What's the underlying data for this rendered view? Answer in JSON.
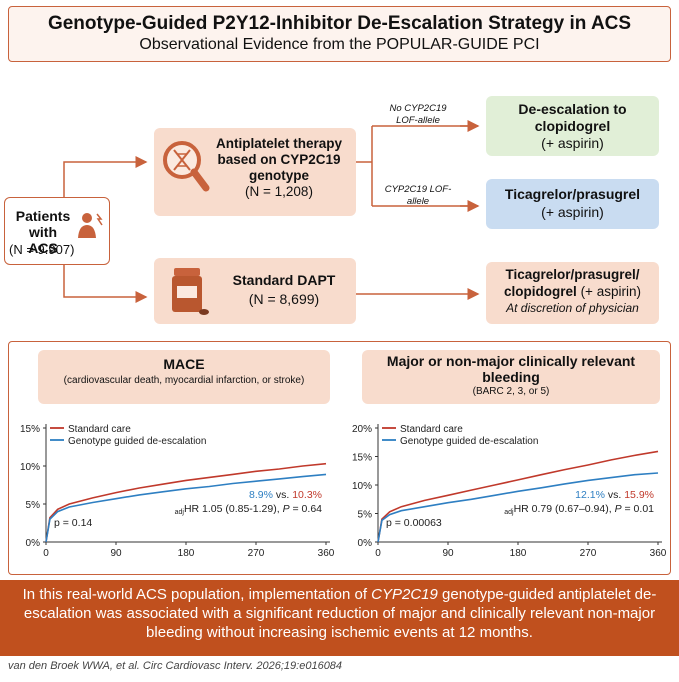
{
  "header": {
    "title": "Genotype-Guided P2Y12-Inhibitor De-Escalation Strategy in ACS",
    "subtitle": "Observational Evidence from the POPULAR-GUIDE PCI"
  },
  "patients": {
    "label": "Patients with ACS",
    "n": "(N = 9.907)"
  },
  "antiplatelet": {
    "label": "Antiplatelet therapy based on CYP2C19 genotype",
    "n": "(N = 1,208)"
  },
  "dapt": {
    "label": "Standard DAPT",
    "n": "(N = 8,699)"
  },
  "branches": {
    "no_lof": "No CYP2C19 LOF-allele",
    "lof": "CYP2C19 LOF-allele"
  },
  "outcomes": {
    "deescalation": {
      "label": "De-escalation to clopidogrel",
      "sub": "(+ aspirin)"
    },
    "ticagrelor": {
      "label": "Ticagrelor/prasugrel",
      "sub": "(+ aspirin)"
    },
    "standard": {
      "label": "Ticagrelor/prasugrel/ clopidogrel",
      "sub": "(+ aspirin)",
      "note": "At discretion of physician"
    }
  },
  "colors": {
    "accent": "#c8623c",
    "standard": "#c0392b",
    "genotype": "#2e7fc2"
  },
  "chart_data": [
    {
      "type": "line",
      "title": "MACE",
      "subtitle": "(cardiovascular death, myocardial infarction, or stroke)",
      "ylim": [
        0,
        15
      ],
      "yticks": [
        "0%",
        "5%",
        "10%",
        "15%"
      ],
      "xticks": [
        "0",
        "90",
        "180",
        "270",
        "360"
      ],
      "x": [
        0,
        5,
        15,
        30,
        60,
        90,
        120,
        150,
        180,
        210,
        240,
        270,
        300,
        330,
        360
      ],
      "series": [
        {
          "name": "Standard care",
          "values": [
            0,
            3.2,
            4.3,
            5.0,
            5.8,
            6.5,
            7.1,
            7.6,
            8.1,
            8.5,
            8.9,
            9.3,
            9.6,
            10.0,
            10.3
          ]
        },
        {
          "name": "Genotype guided de-escalation",
          "values": [
            0,
            3.0,
            4.0,
            4.6,
            5.2,
            5.7,
            6.2,
            6.6,
            7.0,
            7.3,
            7.7,
            8.0,
            8.3,
            8.6,
            8.9
          ]
        }
      ],
      "stat_blue": "8.9%",
      "stat_vs": " vs. ",
      "stat_red": "10.3%",
      "hr_sub": "adj",
      "hr_text": "HR 1.05 (0.85-1.29), ",
      "p_label": "P",
      "p_value": " = 0.64",
      "logrank": "p = 0.14"
    },
    {
      "type": "line",
      "title": "Major or non-major clinically relevant bleeding",
      "subtitle": "(BARC 2, 3, or 5)",
      "ylim": [
        0,
        20
      ],
      "yticks": [
        "0%",
        "5%",
        "10%",
        "15%",
        "20%"
      ],
      "xticks": [
        "0",
        "90",
        "180",
        "270",
        "360"
      ],
      "x": [
        0,
        5,
        15,
        30,
        60,
        90,
        120,
        150,
        180,
        210,
        240,
        270,
        300,
        330,
        360
      ],
      "series": [
        {
          "name": "Standard care",
          "values": [
            0,
            4.0,
            5.3,
            6.2,
            7.3,
            8.2,
            9.1,
            10.0,
            10.9,
            11.8,
            12.7,
            13.5,
            14.4,
            15.2,
            15.9
          ]
        },
        {
          "name": "Genotype guided de-escalation",
          "values": [
            0,
            3.8,
            4.8,
            5.5,
            6.2,
            6.9,
            7.5,
            8.2,
            8.9,
            9.5,
            10.2,
            10.8,
            11.3,
            11.8,
            12.1
          ]
        }
      ],
      "stat_blue": "12.1%",
      "stat_vs": " vs. ",
      "stat_red": "15.9%",
      "hr_sub": "adj",
      "hr_text": "HR 0.79 (0.67–0.94), ",
      "p_label": "P",
      "p_value": " = 0.01",
      "logrank": "p = 0.00063"
    }
  ],
  "conclusion": {
    "pre": "In this real-world ACS population, implementation of ",
    "gene": "CYP2C19",
    "post": " genotype-guided antiplatelet de-escalation was associated with a significant reduction of major and clinically relevant non-major bleeding without increasing ischemic events at 12 months."
  },
  "citation": "van den Broek WWA, et al. Circ Cardiovasc Interv. 2026;19:e016084"
}
